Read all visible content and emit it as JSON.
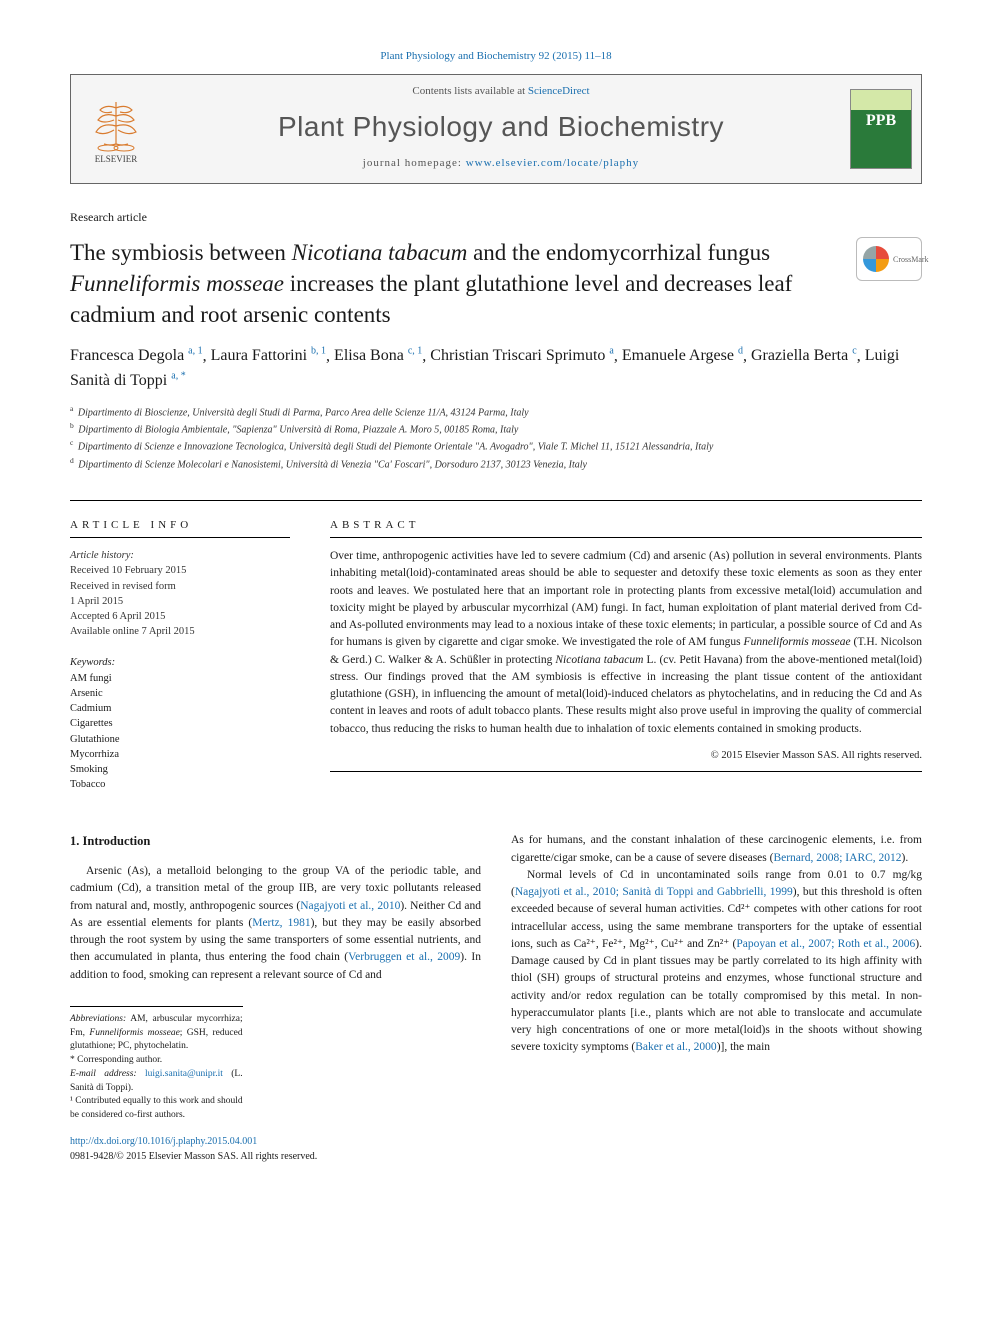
{
  "top_citation": "Plant Physiology and Biochemistry 92 (2015) 11–18",
  "header": {
    "contents_prefix": "Contents lists available at ",
    "contents_link": "ScienceDirect",
    "journal_name": "Plant Physiology and Biochemistry",
    "homepage_prefix": "journal homepage: ",
    "homepage_link": "www.elsevier.com/locate/plaphy",
    "elsevier_label": "ELSEVIER",
    "cover_label": "PPB"
  },
  "article_type": "Research article",
  "title_plain": "The symbiosis between Nicotiana tabacum and the endomycorrhizal fungus Funneliformis mosseae increases the plant glutathione level and decreases leaf cadmium and root arsenic contents",
  "crossmark": "CrossMark",
  "authors": [
    {
      "name": "Francesca Degola",
      "sup": "a, 1"
    },
    {
      "name": "Laura Fattorini",
      "sup": "b, 1"
    },
    {
      "name": "Elisa Bona",
      "sup": "c, 1"
    },
    {
      "name": "Christian Triscari Sprimuto",
      "sup": "a"
    },
    {
      "name": "Emanuele Argese",
      "sup": "d"
    },
    {
      "name": "Graziella Berta",
      "sup": "c"
    },
    {
      "name": "Luigi Sanità di Toppi",
      "sup": "a, *"
    }
  ],
  "affiliations": [
    {
      "sup": "a",
      "text": "Dipartimento di Bioscienze, Università degli Studi di Parma, Parco Area delle Scienze 11/A, 43124 Parma, Italy"
    },
    {
      "sup": "b",
      "text": "Dipartimento di Biologia Ambientale, \"Sapienza\" Università di Roma, Piazzale A. Moro 5, 00185 Roma, Italy"
    },
    {
      "sup": "c",
      "text": "Dipartimento di Scienze e Innovazione Tecnologica, Università degli Studi del Piemonte Orientale \"A. Avogadro\", Viale T. Michel 11, 15121 Alessandria, Italy"
    },
    {
      "sup": "d",
      "text": "Dipartimento di Scienze Molecolari e Nanosistemi, Università di Venezia \"Ca' Foscari\", Dorsoduro 2137, 30123 Venezia, Italy"
    }
  ],
  "article_info": {
    "heading": "ARTICLE INFO",
    "history_label": "Article history:",
    "history": [
      "Received 10 February 2015",
      "Received in revised form",
      "1 April 2015",
      "Accepted 6 April 2015",
      "Available online 7 April 2015"
    ],
    "keywords_label": "Keywords:",
    "keywords": [
      "AM fungi",
      "Arsenic",
      "Cadmium",
      "Cigarettes",
      "Glutathione",
      "Mycorrhiza",
      "Smoking",
      "Tobacco"
    ]
  },
  "abstract": {
    "heading": "ABSTRACT",
    "text": "Over time, anthropogenic activities have led to severe cadmium (Cd) and arsenic (As) pollution in several environments. Plants inhabiting metal(loid)-contaminated areas should be able to sequester and detoxify these toxic elements as soon as they enter roots and leaves. We postulated here that an important role in protecting plants from excessive metal(loid) accumulation and toxicity might be played by arbuscular mycorrhizal (AM) fungi. In fact, human exploitation of plant material derived from Cd- and As-polluted environments may lead to a noxious intake of these toxic elements; in particular, a possible source of Cd and As for humans is given by cigarette and cigar smoke. We investigated the role of AM fungus Funneliformis mosseae (T.H. Nicolson & Gerd.) C. Walker & A. Schüßler in protecting Nicotiana tabacum L. (cv. Petit Havana) from the above-mentioned metal(loid) stress. Our findings proved that the AM symbiosis is effective in increasing the plant tissue content of the antioxidant glutathione (GSH), in influencing the amount of metal(loid)-induced chelators as phytochelatins, and in reducing the Cd and As content in leaves and roots of adult tobacco plants. These results might also prove useful in improving the quality of commercial tobacco, thus reducing the risks to human health due to inhalation of toxic elements contained in smoking products.",
    "copyright": "© 2015 Elsevier Masson SAS. All rights reserved."
  },
  "intro": {
    "heading": "1. Introduction",
    "p1_a": "Arsenic (As), a metalloid belonging to the group VA of the periodic table, and cadmium (Cd), a transition metal of the group IIB, are very toxic pollutants released from natural and, mostly, anthropogenic sources (",
    "p1_ref1": "Nagajyoti et al., 2010",
    "p1_b": "). Neither Cd and As are essential elements for plants (",
    "p1_ref2": "Mertz, 1981",
    "p1_c": "), but they may be easily absorbed through the root system by using the same transporters of some essential nutrients, and then accumulated in planta, thus entering the food chain (",
    "p1_ref3": "Verbruggen et al., 2009",
    "p1_d": "). In addition to food, smoking can represent a relevant source of Cd and",
    "p2_a": "As for humans, and the constant inhalation of these carcinogenic elements, i.e. from cigarette/cigar smoke, can be a cause of severe diseases (",
    "p2_ref1": "Bernard, 2008; IARC, 2012",
    "p2_b": ").",
    "p3_a": "Normal levels of Cd in uncontaminated soils range from 0.01 to 0.7 mg/kg (",
    "p3_ref1": "Nagajyoti et al., 2010; Sanità di Toppi and Gabbrielli, 1999",
    "p3_b": "), but this threshold is often exceeded because of several human activities. Cd²⁺ competes with other cations for root intracellular access, using the same membrane transporters for the uptake of essential ions, such as Ca²⁺, Fe²⁺, Mg²⁺, Cu²⁺ and Zn²⁺ (",
    "p3_ref2": "Papoyan et al., 2007; Roth et al., 2006",
    "p3_c": "). Damage caused by Cd in plant tissues may be partly correlated to its high affinity with thiol (SH) groups of structural proteins and enzymes, whose functional structure and activity and/or redox regulation can be totally compromised by this metal. In non-hyperaccumulator plants [i.e., plants which are not able to translocate and accumulate very high concentrations of one or more metal(loid)s in the shoots without showing severe toxicity symptoms (",
    "p3_ref3": "Baker et al., 2000",
    "p3_d": ")], the main"
  },
  "footnotes": {
    "abbrev_label": "Abbreviations:",
    "abbrev_text": " AM, arbuscular mycorrhiza; Fm, Funneliformis mosseae; GSH, reduced glutathione; PC, phytochelatin.",
    "corr": "* Corresponding author.",
    "email_label": "E-mail address: ",
    "email": "luigi.sanita@unipr.it",
    "email_tail": " (L. Sanità di Toppi).",
    "contrib": "¹ Contributed equally to this work and should be considered co-first authors."
  },
  "doi": {
    "link": "http://dx.doi.org/10.1016/j.plaphy.2015.04.001",
    "issn": "0981-9428/© 2015 Elsevier Masson SAS. All rights reserved."
  },
  "colors": {
    "link": "#1a6faf",
    "text": "#1a1a1a",
    "header_bg": "#f5f5f5",
    "cover_green": "#2a7a3a",
    "cover_top": "#d4e8a8"
  }
}
